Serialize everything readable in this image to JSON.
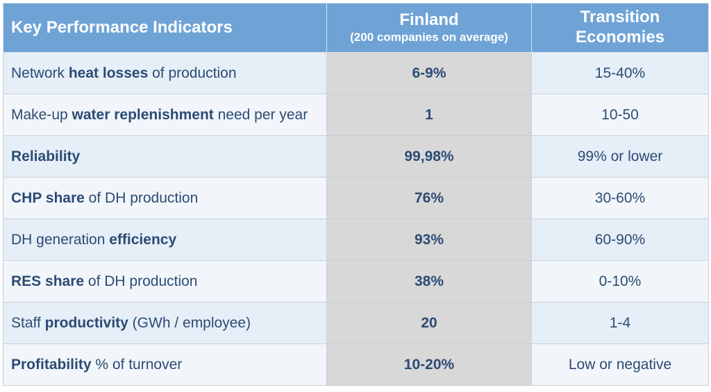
{
  "header": {
    "kpi": "Key Performance Indicators",
    "finland_title": "Finland",
    "finland_sub": "(200 companies on average)",
    "transition_line1": "Transition",
    "transition_line2": "Economies"
  },
  "rows": [
    {
      "pre": "Network ",
      "bold": "heat losses",
      "post": " of production",
      "finland": "6-9%",
      "transition": "15-40%"
    },
    {
      "pre": "Make-up ",
      "bold": "water replenishment",
      "post": " need per year",
      "finland": "1",
      "transition": "10-50"
    },
    {
      "pre": "",
      "bold": "Reliability",
      "post": "",
      "finland": "99,98%",
      "transition": "99% or lower"
    },
    {
      "pre": "",
      "bold": "CHP share",
      "post": " of DH production",
      "finland": "76%",
      "transition": "30-60%"
    },
    {
      "pre": "DH generation ",
      "bold": "efficiency",
      "post": "",
      "finland": "93%",
      "transition": "60-90%"
    },
    {
      "pre": "",
      "bold": "RES share",
      "post": " of DH production",
      "finland": "38%",
      "transition": "0-10%"
    },
    {
      "pre": "Staff ",
      "bold": "productivity",
      "post": " (GWh / employee)",
      "finland": "20",
      "transition": "1-4"
    },
    {
      "pre": "",
      "bold": "Profitability",
      "post": " % of turnover",
      "finland": "10-20%",
      "transition": "Low or negative"
    }
  ],
  "colors": {
    "header_bg": "#6fa3d6",
    "row_odd": "#e6eef8",
    "row_even": "#f2f6fb",
    "finland_column": "#d8d8d8",
    "text": "#2b4b73"
  }
}
